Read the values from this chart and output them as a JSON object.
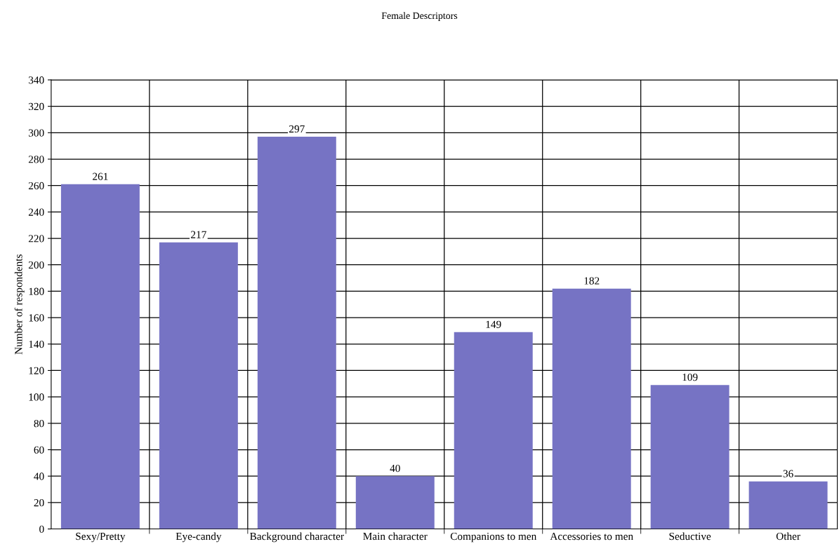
{
  "chart_data": {
    "type": "bar",
    "title": "Female Descriptors",
    "ylabel": "Number of respondents",
    "categories": [
      "Sexy/Pretty",
      "Eye-candy",
      "Background character",
      "Main character",
      "Companions to men",
      "Accessories to men",
      "Seductive",
      "Other"
    ],
    "values": [
      261,
      217,
      297,
      40,
      149,
      182,
      109,
      36
    ],
    "color": "#7673c4",
    "ylim": [
      0,
      340
    ],
    "yticks": [
      0,
      20,
      40,
      60,
      80,
      100,
      120,
      140,
      160,
      180,
      200,
      220,
      240,
      260,
      280,
      300,
      320,
      340
    ],
    "grid": true,
    "data_labels": true
  }
}
